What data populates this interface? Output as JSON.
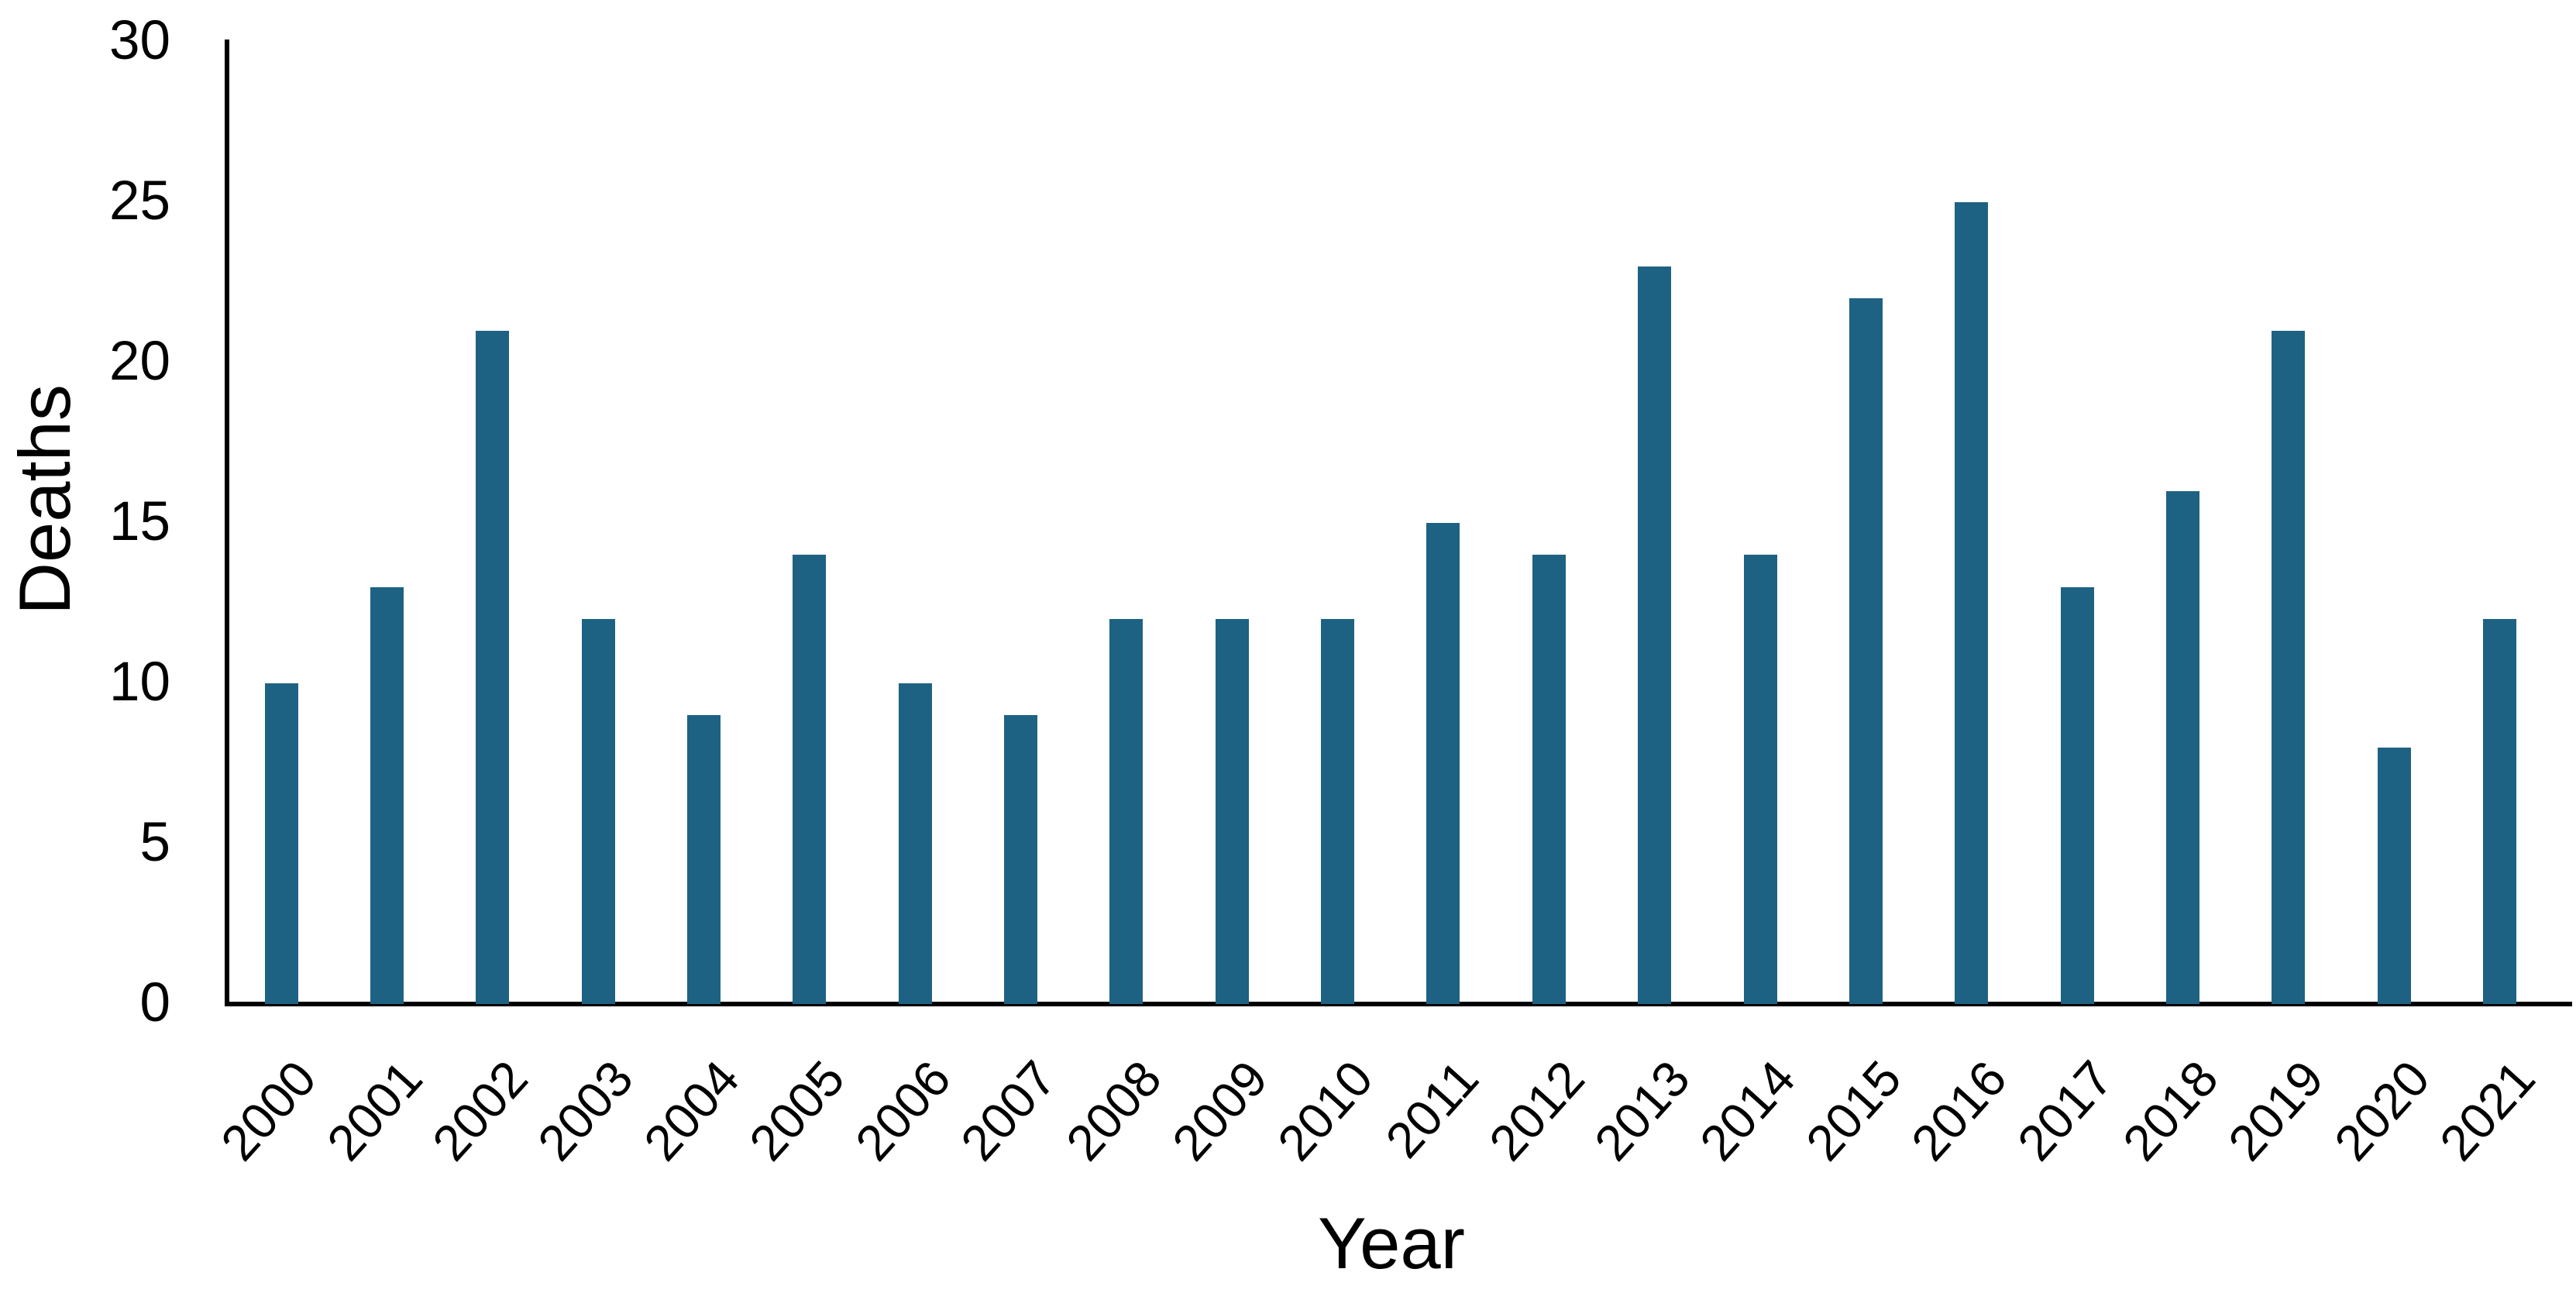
{
  "chart_data": {
    "type": "bar",
    "title": "",
    "xlabel": "Year",
    "ylabel": "Deaths",
    "categories": [
      "2000",
      "2001",
      "2002",
      "2003",
      "2004",
      "2005",
      "2006",
      "2007",
      "2008",
      "2009",
      "2010",
      "2011",
      "2012",
      "2013",
      "2014",
      "2015",
      "2016",
      "2017",
      "2018",
      "2019",
      "2020",
      "2021"
    ],
    "values": [
      10,
      13,
      21,
      12,
      9,
      14,
      10,
      9,
      12,
      12,
      12,
      15,
      14,
      23,
      14,
      22,
      25,
      13,
      16,
      21,
      8,
      12
    ],
    "yticks": [
      0,
      5,
      10,
      15,
      20,
      25,
      30
    ],
    "ylim": [
      0,
      30
    ],
    "grid": false,
    "legend": false,
    "bar_color": "#1e6283",
    "axis_color": "#000000",
    "text_color": "#000000"
  }
}
